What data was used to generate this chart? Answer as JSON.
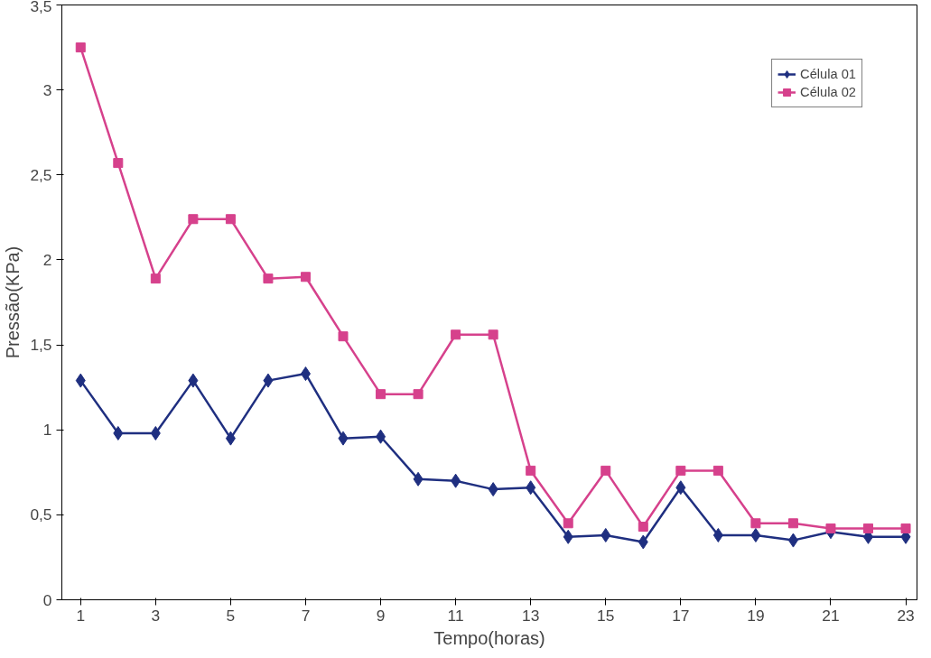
{
  "chart_data": {
    "type": "line",
    "xlabel": "Tempo(horas)",
    "ylabel": "Pressão(KPa)",
    "x": [
      1,
      2,
      3,
      4,
      5,
      6,
      7,
      8,
      9,
      10,
      11,
      12,
      13,
      14,
      15,
      16,
      17,
      18,
      19,
      20,
      21,
      22,
      23
    ],
    "series": [
      {
        "name": "Célula 01",
        "color": "#1f2f80",
        "marker": "diamond",
        "values": [
          1.29,
          0.98,
          0.98,
          1.29,
          0.95,
          1.29,
          1.33,
          0.95,
          0.96,
          0.71,
          0.7,
          0.65,
          0.66,
          0.37,
          0.38,
          0.34,
          0.66,
          0.38,
          0.38,
          0.35,
          0.4,
          0.37,
          0.37
        ]
      },
      {
        "name": "Célula 02",
        "color": "#d6418c",
        "marker": "square",
        "values": [
          3.25,
          2.57,
          1.89,
          2.24,
          2.24,
          1.89,
          1.9,
          1.55,
          1.21,
          1.21,
          1.56,
          1.56,
          0.76,
          0.45,
          0.76,
          0.43,
          0.76,
          0.76,
          0.45,
          0.45,
          0.42,
          0.42,
          0.42
        ]
      }
    ],
    "xlim": [
      0.5,
      23.3
    ],
    "xticks": [
      1,
      3,
      5,
      7,
      9,
      11,
      13,
      15,
      17,
      19,
      21,
      23
    ],
    "ylim": [
      0,
      3.5
    ],
    "yticks": [
      0,
      {
        "value": 0.5,
        "label": "0,5"
      },
      1,
      {
        "value": 1.5,
        "label": "1,5"
      },
      2,
      {
        "value": 2.5,
        "label": "2,5"
      },
      3,
      {
        "value": 3.5,
        "label": "3,5"
      }
    ],
    "grid": false,
    "legend": "top right",
    "line_style": "solid"
  }
}
